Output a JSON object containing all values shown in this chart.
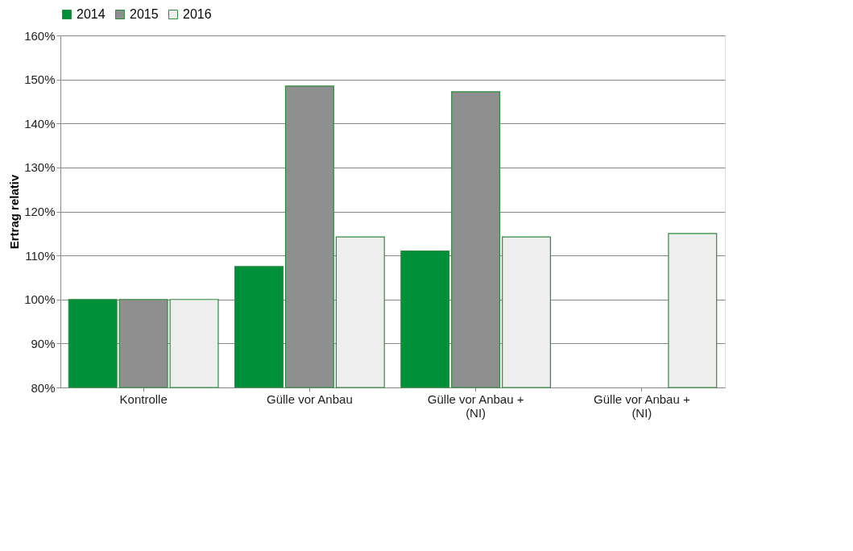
{
  "chart_data": {
    "type": "bar",
    "ylabel": "Ertrag relativ",
    "categories": [
      "Kontrolle",
      "Gülle vor Anbau",
      "Gülle vor Anbau + (NI)",
      "Gülle vor Anbau + (NI)"
    ],
    "series": [
      {
        "name": "2014",
        "color": "#00903a",
        "values": [
          100,
          107.5,
          111,
          null
        ]
      },
      {
        "name": "2015",
        "color": "#8f8f8f",
        "values": [
          100,
          148.5,
          147.2,
          null
        ]
      },
      {
        "name": "2016",
        "color": "#eeeeee",
        "values": [
          100,
          114.2,
          114.2,
          115
        ]
      }
    ],
    "ylim": [
      80,
      160
    ],
    "yticks": [
      {
        "value": 80,
        "label": "80%"
      },
      {
        "value": 90,
        "label": "90%"
      },
      {
        "value": 100,
        "label": "100%"
      },
      {
        "value": 110,
        "label": "110%"
      },
      {
        "value": 120,
        "label": "120%"
      },
      {
        "value": 130,
        "label": "130%"
      },
      {
        "value": 140,
        "label": "140%"
      },
      {
        "value": 150,
        "label": "150%"
      },
      {
        "value": 160,
        "label": "160%"
      }
    ],
    "grid": "y",
    "legend": "top"
  }
}
